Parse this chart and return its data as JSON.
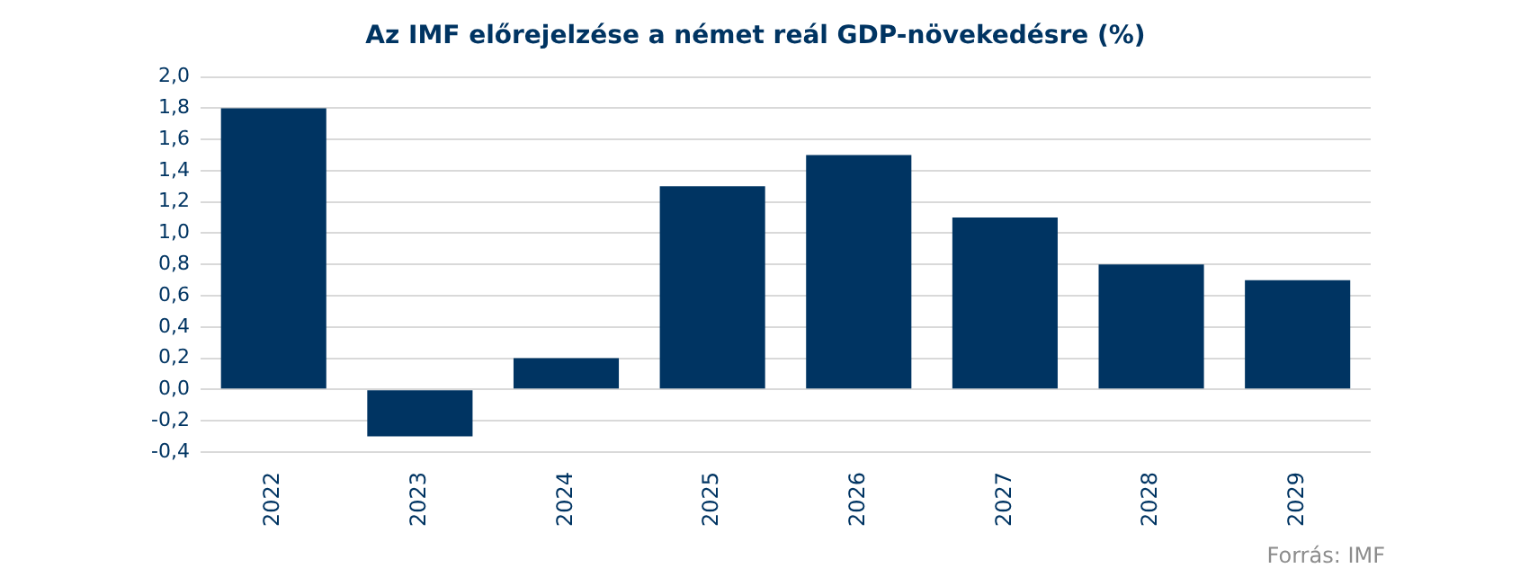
{
  "chart_data": {
    "type": "bar",
    "title": "Az IMF előrejelzése a német reál GDP-növekedésre (%)",
    "categories": [
      "2022",
      "2023",
      "2024",
      "2025",
      "2026",
      "2027",
      "2028",
      "2029"
    ],
    "values": [
      1.8,
      -0.3,
      0.2,
      1.3,
      1.5,
      1.1,
      0.8,
      0.7
    ],
    "color": "#003462",
    "ylim": [
      -0.4,
      2.0
    ],
    "yticks": [
      {
        "value": -0.4,
        "label": "-0,4"
      },
      {
        "value": -0.2,
        "label": "-0,2"
      },
      {
        "value": 0,
        "label": "0,0"
      },
      {
        "value": 0.2,
        "label": "0,2"
      },
      {
        "value": 0.4,
        "label": "0,4"
      },
      {
        "value": 0.6,
        "label": "0,6"
      },
      {
        "value": 0.8,
        "label": "0,8"
      },
      {
        "value": 1.0,
        "label": "1,0"
      },
      {
        "value": 1.2,
        "label": "1,2"
      },
      {
        "value": 1.4,
        "label": "1,4"
      },
      {
        "value": 1.6,
        "label": "1,6"
      },
      {
        "value": 1.8,
        "label": "1,8"
      },
      {
        "value": 2.0,
        "label": "2,0"
      }
    ],
    "grid": "y",
    "legend": false,
    "annotations": [
      "Forrás: IMF"
    ]
  }
}
